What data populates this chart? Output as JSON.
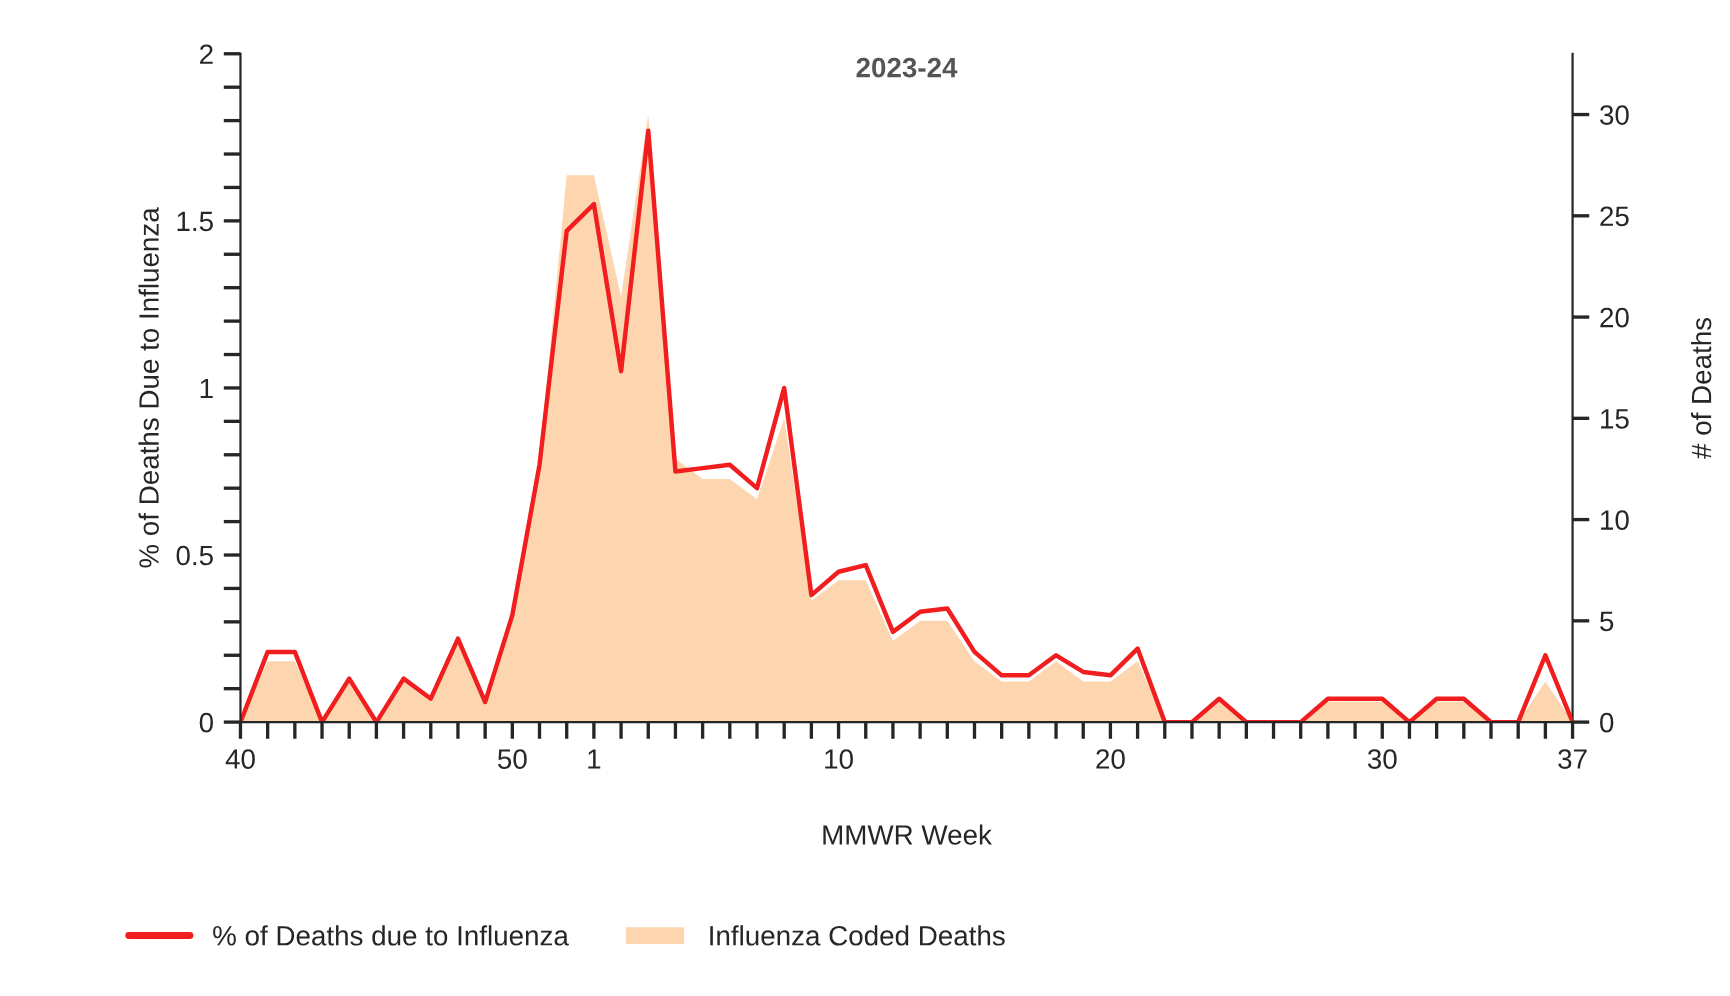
{
  "chart_data": {
    "type": "line",
    "title": "2023-24",
    "xlabel": "MMWR Week",
    "ylabel": "% of Deaths Due to Influenza",
    "y2label": "# of Deaths",
    "categories": [
      "40",
      null,
      null,
      null,
      null,
      null,
      null,
      null,
      null,
      null,
      "50",
      null,
      null,
      "1",
      null,
      null,
      null,
      null,
      null,
      null,
      null,
      null,
      "10",
      null,
      null,
      null,
      null,
      null,
      null,
      null,
      null,
      null,
      "20",
      null,
      null,
      null,
      null,
      null,
      null,
      null,
      null,
      null,
      "30",
      null,
      null,
      null,
      null,
      null,
      null,
      "37"
    ],
    "series": [
      {
        "name": "% of Deaths due to Influenza",
        "color": "#f01e1e",
        "values": [
          0,
          0.21,
          0.21,
          0,
          0.13,
          0,
          0.13,
          0.07,
          0.25,
          0.06,
          0.32,
          0.77,
          1.47,
          1.55,
          1.05,
          1.77,
          0.75,
          0.76,
          0.77,
          0.7,
          1.0,
          0.38,
          0.45,
          0.47,
          0.27,
          0.33,
          0.34,
          0.21,
          0.14,
          0.14,
          0.2,
          0.15,
          0.14,
          0.22,
          0,
          0,
          0.07,
          0,
          0,
          0,
          0.07,
          0.07,
          0.07,
          0,
          0.07,
          0.07,
          0,
          0,
          0.2,
          0
        ]
      },
      {
        "name": "Influenza Coded Deaths",
        "type": "area",
        "axis": "y2",
        "color": "#fdd6b0",
        "values": [
          0,
          3,
          3,
          0,
          2,
          0,
          2,
          1,
          4,
          1,
          5,
          13,
          27,
          27,
          21,
          30,
          13,
          12,
          12,
          11,
          15,
          6,
          7,
          7,
          4,
          5,
          5,
          3,
          2,
          2,
          3,
          2,
          2,
          3,
          0,
          0,
          1,
          0,
          0,
          0,
          1,
          1,
          1,
          0,
          1,
          1,
          0,
          0,
          2,
          0
        ]
      }
    ],
    "ylim": [
      0,
      2
    ],
    "yticks": [
      0,
      {
        "value": 0.1,
        "label": null
      },
      {
        "value": 0.2,
        "label": null
      },
      {
        "value": 0.3,
        "label": null
      },
      {
        "value": 0.4,
        "label": null
      },
      0.5,
      {
        "value": 0.6,
        "label": null
      },
      {
        "value": 0.7,
        "label": null
      },
      {
        "value": 0.8,
        "label": null
      },
      {
        "value": 0.9,
        "label": null
      },
      1,
      {
        "value": 1.1,
        "label": null
      },
      {
        "value": 1.2,
        "label": null
      },
      {
        "value": 1.3,
        "label": null
      },
      {
        "value": 1.4,
        "label": null
      },
      1.5,
      {
        "value": 1.6,
        "label": null
      },
      {
        "value": 1.7,
        "label": null
      },
      {
        "value": 1.8,
        "label": null
      },
      {
        "value": 1.9,
        "label": null
      },
      2
    ],
    "y2lim": [
      0,
      33
    ],
    "y2ticks": [
      0,
      5,
      10,
      15,
      20,
      25,
      30
    ],
    "grid": false,
    "legend": "bottom left",
    "marker": "none",
    "line_style": "solid"
  }
}
